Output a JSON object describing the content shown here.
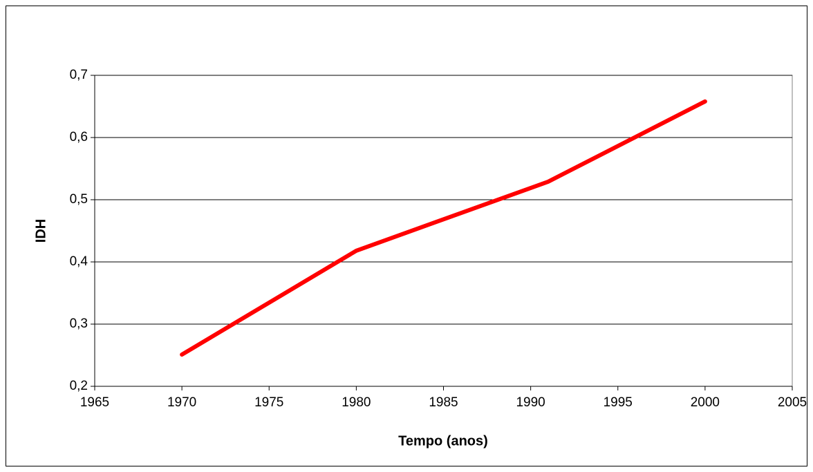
{
  "chart_data": {
    "type": "line",
    "x": [
      1970,
      1980,
      1991,
      2000
    ],
    "values": [
      0.251,
      0.418,
      0.529,
      0.658
    ],
    "color": "#ff0000",
    "xlabel": "Tempo (anos)",
    "ylabel": "IDH",
    "xlim": [
      1965,
      2005
    ],
    "xticks": [
      1965,
      1970,
      1975,
      1980,
      1985,
      1990,
      1995,
      2000,
      2005
    ],
    "ylim": [
      0.2,
      0.7
    ],
    "yticks": [
      {
        "value": 0.2,
        "label": "0,2"
      },
      {
        "value": 0.3,
        "label": "0,3"
      },
      {
        "value": 0.4,
        "label": "0,4"
      },
      {
        "value": 0.5,
        "label": "0,5"
      },
      {
        "value": 0.6,
        "label": "0,6"
      },
      {
        "value": 0.7,
        "label": "0,7"
      }
    ],
    "grid": true
  }
}
